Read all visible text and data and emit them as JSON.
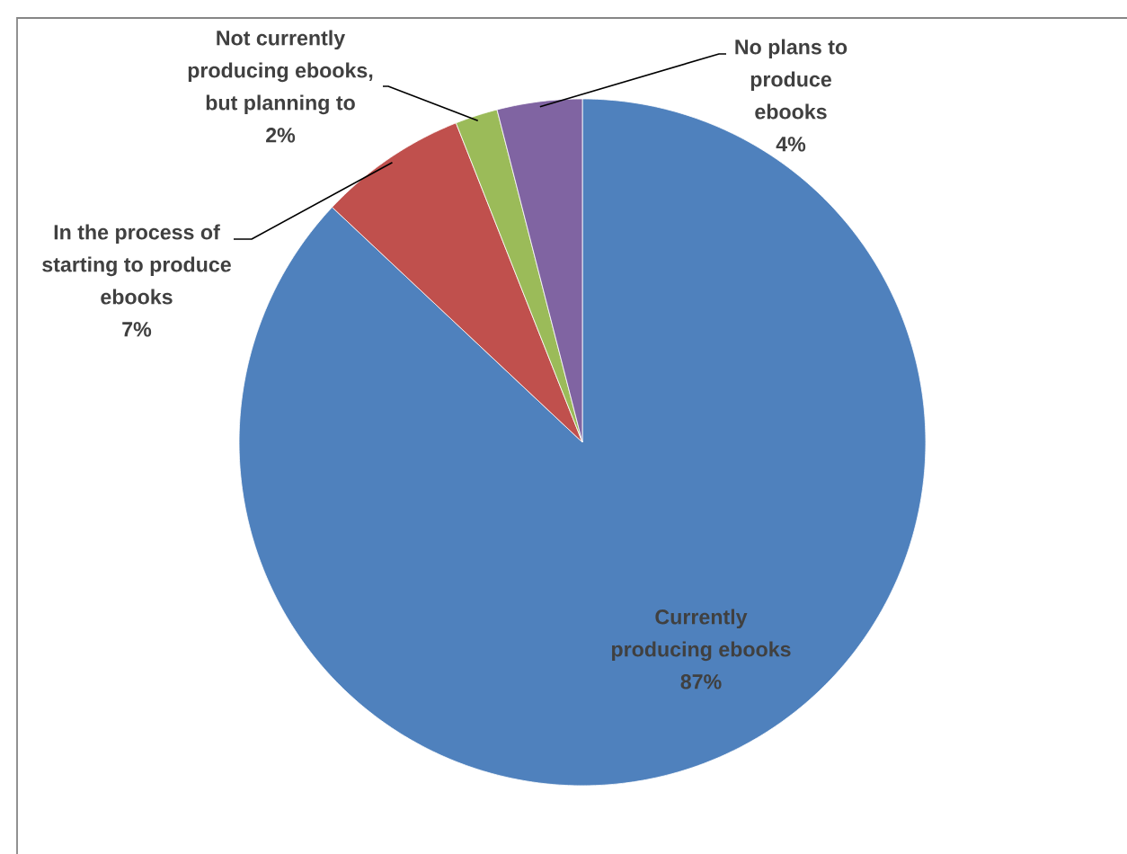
{
  "chart_data": {
    "type": "pie",
    "categories": [
      "Currently producing ebooks",
      "In the process of starting to produce ebooks",
      "Not currently producing ebooks, but planning to",
      "No plans to produce ebooks"
    ],
    "values": [
      87,
      7,
      2,
      4
    ],
    "colors": [
      "#4f81bd",
      "#c0504d",
      "#9bbb59",
      "#8064a2"
    ],
    "value_labels": [
      "87%",
      "7%",
      "2%",
      "4%"
    ]
  }
}
